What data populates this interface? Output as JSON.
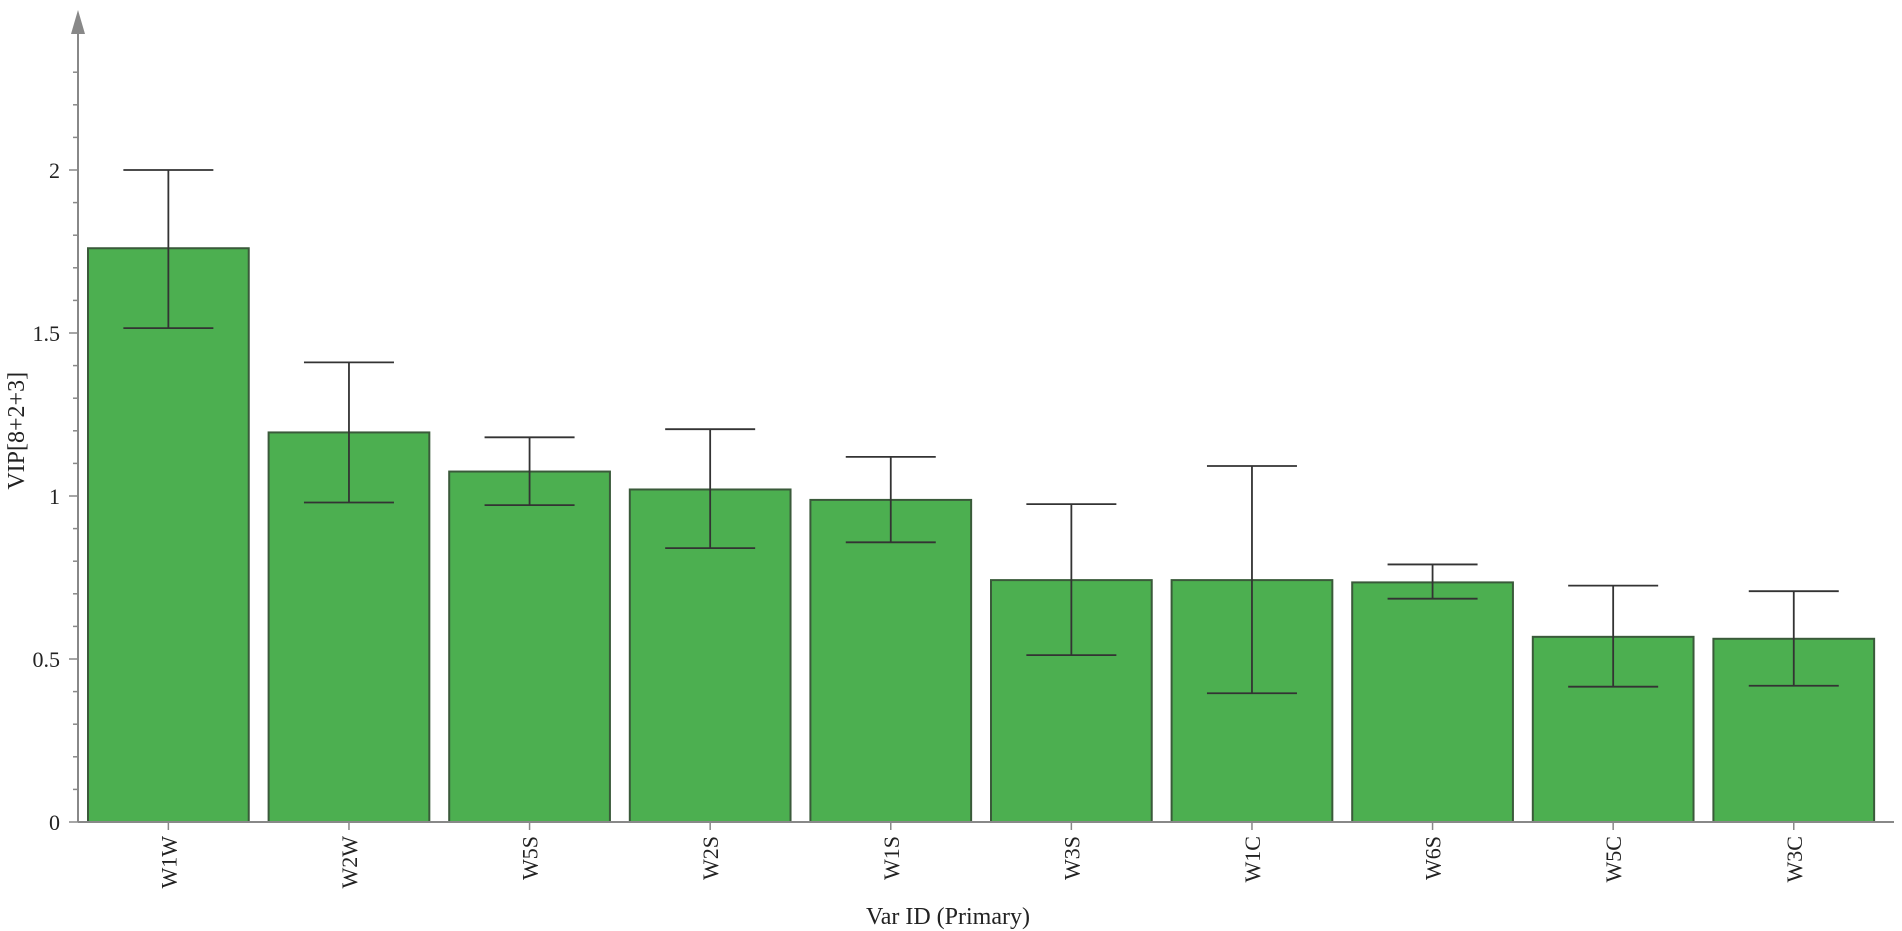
{
  "chart_data": {
    "type": "bar",
    "title": "",
    "xlabel": "Var ID (Primary)",
    "ylabel": "VIP[8+2+3]",
    "categories": [
      "W1W",
      "W2W",
      "W5S",
      "W2S",
      "W1S",
      "W3S",
      "W1C",
      "W6S",
      "W5C",
      "W3C"
    ],
    "values": [
      1.76,
      1.195,
      1.075,
      1.02,
      0.988,
      0.742,
      0.742,
      0.735,
      0.568,
      0.562
    ],
    "error_low": [
      1.515,
      0.98,
      0.972,
      0.84,
      0.858,
      0.512,
      0.395,
      0.685,
      0.415,
      0.418
    ],
    "error_high": [
      2.0,
      1.41,
      1.18,
      1.205,
      1.12,
      0.975,
      1.092,
      0.79,
      0.725,
      0.708
    ],
    "ylim": [
      0,
      2.4
    ],
    "yticks": [
      "0",
      "0.5",
      "1",
      "1.5",
      "2"
    ],
    "ytick_values": [
      0,
      0.5,
      1,
      1.5,
      2
    ],
    "bar_color": "#4caf50",
    "grid": false,
    "legend": "none"
  }
}
